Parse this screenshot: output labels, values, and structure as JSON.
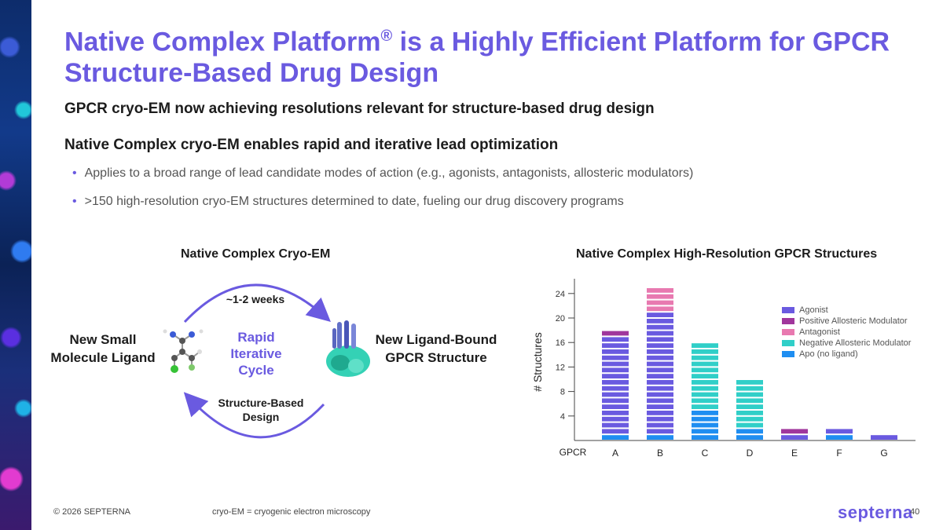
{
  "slide": {
    "title_main": "Native Complex Platform",
    "title_reg": "®",
    "title_rest": " is a Highly Efficient Platform for GPCR Structure-Based Drug Design",
    "heading1": "GPCR cryo-EM now achieving resolutions relevant for structure-based drug design",
    "heading2": "Native Complex cryo-EM enables rapid and iterative lead optimization",
    "bullets": [
      "Applies to a broad range of lead candidate modes of action (e.g., agonists, antagonists, allosteric modulators)",
      ">150 high-resolution cryo-EM structures determined to date, fueling our drug discovery programs"
    ]
  },
  "cycle": {
    "heading": "Native Complex Cryo-EM",
    "left_label_1": "New Small",
    "left_label_2": "Molecule Ligand",
    "right_label_1": "New Ligand-Bound",
    "right_label_2": "GPCR Structure",
    "center_1": "Rapid",
    "center_2": "Iterative",
    "center_3": "Cycle",
    "top_label": "~1-2 weeks",
    "bottom_label_1": "Structure-Based",
    "bottom_label_2": "Design",
    "arrow_color": "#6a5ae0"
  },
  "chart_heading": "Native Complex High-Resolution GPCR Structures",
  "chart_data": {
    "type": "bar",
    "title": "",
    "xlabel": "GPCR",
    "ylabel": "# Structures",
    "categories": [
      "A",
      "B",
      "C",
      "D",
      "E",
      "F",
      "G"
    ],
    "ylim": [
      0,
      27
    ],
    "yticks": [
      4,
      8,
      12,
      16,
      20,
      24
    ],
    "stacked": true,
    "series": [
      {
        "name": "Apo (no ligand)",
        "color": "#1f8ef1",
        "values": [
          1,
          1,
          5,
          2,
          0,
          1,
          0
        ]
      },
      {
        "name": "Agonist",
        "color": "#6a5ae0",
        "values": [
          16,
          20,
          0,
          0,
          1,
          1,
          1
        ]
      },
      {
        "name": "Positive Allosteric Modulator",
        "color": "#a0369c",
        "values": [
          1,
          0,
          0,
          0,
          1,
          0,
          0
        ]
      },
      {
        "name": "Antagonist",
        "color": "#e879b0",
        "values": [
          0,
          4,
          0,
          0,
          0,
          0,
          0
        ]
      },
      {
        "name": "Negative Allosteric Modulator",
        "color": "#30cfc8",
        "values": [
          0,
          0,
          11,
          8,
          0,
          0,
          0
        ]
      }
    ],
    "legend_order": [
      "Agonist",
      "Positive Allosteric Modulator",
      "Antagonist",
      "Negative Allosteric Modulator",
      "Apo (no ligand)"
    ],
    "legend_position": "top-right",
    "grid": false
  },
  "footer": {
    "copyright": "© 2026 SEPTERNA",
    "note": "cryo-EM = cryogenic electron microscopy",
    "logo": "septerna",
    "page": "40"
  }
}
